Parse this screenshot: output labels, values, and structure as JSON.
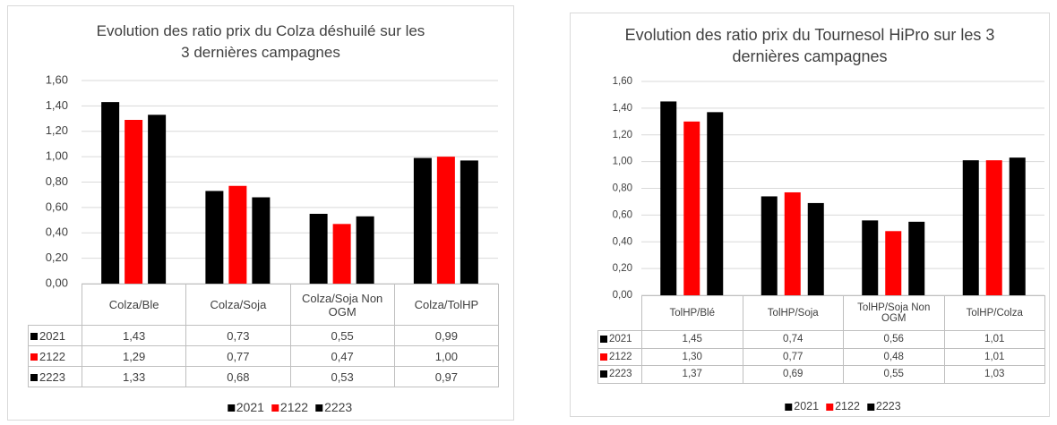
{
  "chart_data": [
    {
      "type": "bar",
      "title": "Evolution des ratio prix du Colza déshuilé sur les 3 dernières campagnes",
      "categories": [
        "Colza/Ble",
        "Colza/Soja",
        "Colza/Soja Non OGM",
        "Colza/TolHP"
      ],
      "series": [
        {
          "name": "2021",
          "color": "#000000",
          "values": [
            1.43,
            0.73,
            0.55,
            0.99
          ],
          "value_labels": [
            "1,43",
            "0,73",
            "0,55",
            "0,99"
          ]
        },
        {
          "name": "2122",
          "color": "#ff0000",
          "values": [
            1.29,
            0.77,
            0.47,
            1.0
          ],
          "value_labels": [
            "1,29",
            "0,77",
            "0,47",
            "1,00"
          ]
        },
        {
          "name": "2223",
          "color": "#000000",
          "values": [
            1.33,
            0.68,
            0.53,
            0.97
          ],
          "value_labels": [
            "1,33",
            "0,68",
            "0,53",
            "0,97"
          ]
        }
      ],
      "ylim": [
        0,
        1.6
      ],
      "yticks": [
        {
          "value": 0,
          "label": "0,00"
        },
        {
          "value": 0.2,
          "label": "0,20"
        },
        {
          "value": 0.4,
          "label": "0,40"
        },
        {
          "value": 0.6,
          "label": "0,60"
        },
        {
          "value": 0.8,
          "label": "0,80"
        },
        {
          "value": 1.0,
          "label": "1,00"
        },
        {
          "value": 1.2,
          "label": "1,20"
        },
        {
          "value": 1.4,
          "label": "1,40"
        },
        {
          "value": 1.6,
          "label": "1,60"
        }
      ],
      "grid": true,
      "legend": "bottom"
    },
    {
      "type": "bar",
      "title": "Evolution des ratio prix du Tournesol HiPro sur les 3 dernières campagnes",
      "categories": [
        "TolHP/Blé",
        "TolHP/Soja",
        "TolHP/Soja Non OGM",
        "TolHP/Colza"
      ],
      "series": [
        {
          "name": "2021",
          "color": "#000000",
          "values": [
            1.45,
            0.74,
            0.56,
            1.01
          ],
          "value_labels": [
            "1,45",
            "0,74",
            "0,56",
            "1,01"
          ]
        },
        {
          "name": "2122",
          "color": "#ff0000",
          "values": [
            1.3,
            0.77,
            0.48,
            1.01
          ],
          "value_labels": [
            "1,30",
            "0,77",
            "0,48",
            "1,01"
          ]
        },
        {
          "name": "2223",
          "color": "#000000",
          "values": [
            1.37,
            0.69,
            0.55,
            1.03
          ],
          "value_labels": [
            "1,37",
            "0,69",
            "0,55",
            "1,03"
          ]
        }
      ],
      "ylim": [
        0,
        1.6
      ],
      "yticks": [
        {
          "value": 0,
          "label": "0,00"
        },
        {
          "value": 0.2,
          "label": "0,20"
        },
        {
          "value": 0.4,
          "label": "0,40"
        },
        {
          "value": 0.6,
          "label": "0,60"
        },
        {
          "value": 0.8,
          "label": "0,80"
        },
        {
          "value": 1.0,
          "label": "1,00"
        },
        {
          "value": 1.2,
          "label": "1,20"
        },
        {
          "value": 1.4,
          "label": "1,40"
        },
        {
          "value": 1.6,
          "label": "1,60"
        }
      ],
      "grid": true,
      "legend": "bottom"
    }
  ]
}
